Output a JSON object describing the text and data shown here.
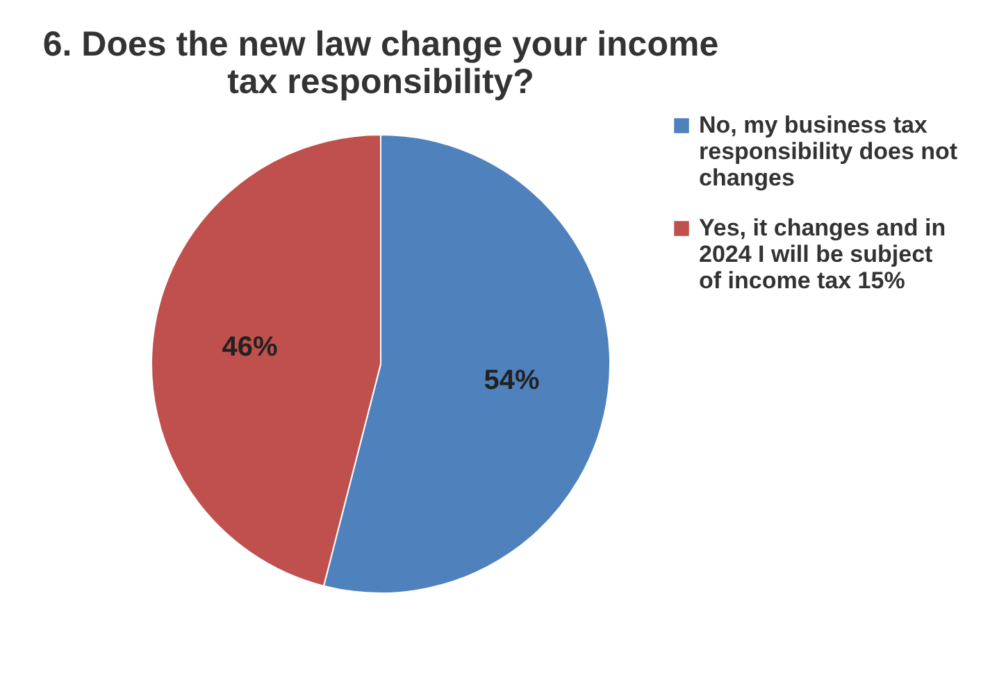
{
  "chart_data": {
    "type": "pie",
    "title": "6. Does the new law change your income tax responsibility?",
    "categories": [
      "No, my business tax responsibility does not changes",
      "Yes, it changes and in 2024 I will be subject of income tax 15%"
    ],
    "values": [
      54,
      46
    ],
    "colors": [
      "#4f81bd",
      "#c0504d"
    ],
    "value_labels": [
      "54%",
      "46%"
    ],
    "legend": "right"
  }
}
